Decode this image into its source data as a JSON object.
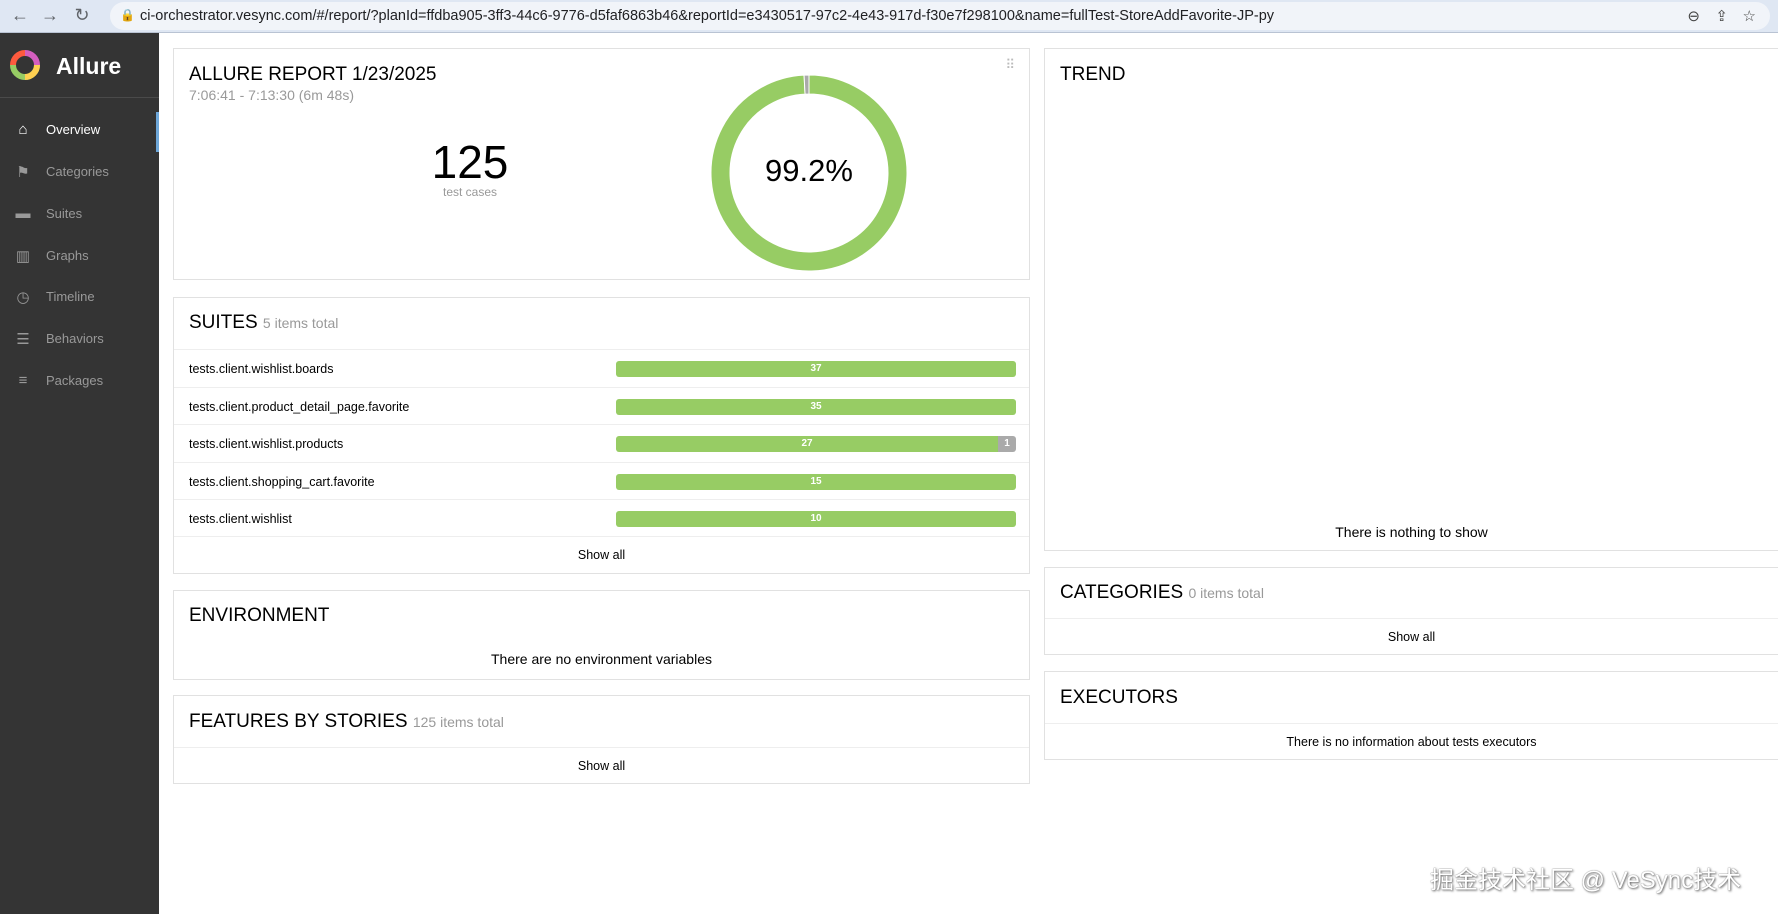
{
  "browser": {
    "url": "ci-orchestrator.vesync.com/#/report/?planId=ffdba905-3ff3-44c6-9776-d5faf6863b46&reportId=e3430517-97c2-4e43-917d-f30e7f298100&name=fullTest-StoreAddFavorite-JP-py"
  },
  "sidebar": {
    "brand": "Allure",
    "items": [
      {
        "label": "Overview",
        "icon": "home-icon"
      },
      {
        "label": "Categories",
        "icon": "flag-icon"
      },
      {
        "label": "Suites",
        "icon": "briefcase-icon"
      },
      {
        "label": "Graphs",
        "icon": "bar-chart-icon"
      },
      {
        "label": "Timeline",
        "icon": "clock-icon"
      },
      {
        "label": "Behaviors",
        "icon": "list-icon"
      },
      {
        "label": "Packages",
        "icon": "align-left-icon"
      }
    ]
  },
  "summary": {
    "title": "ALLURE REPORT 1/23/2025",
    "time": "7:06:41 - 7:13:30 (6m 48s)",
    "count": "125",
    "count_label": "test cases",
    "percent": "99.2%",
    "passed": 124,
    "unknown": 1
  },
  "suites": {
    "title": "SUITES",
    "subtitle": "5 items total",
    "show_all": "Show all",
    "rows": [
      {
        "name": "tests.client.wishlist.boards",
        "passed": 37,
        "unknown": 0
      },
      {
        "name": "tests.client.product_detail_page.favorite",
        "passed": 35,
        "unknown": 0
      },
      {
        "name": "tests.client.wishlist.products",
        "passed": 27,
        "unknown": 1
      },
      {
        "name": "tests.client.shopping_cart.favorite",
        "passed": 15,
        "unknown": 0
      },
      {
        "name": "tests.client.wishlist",
        "passed": 10,
        "unknown": 0
      }
    ]
  },
  "environment": {
    "title": "ENVIRONMENT",
    "empty": "There are no environment variables"
  },
  "features": {
    "title": "FEATURES BY STORIES",
    "subtitle": "125 items total",
    "show_all": "Show all"
  },
  "trend": {
    "title": "TREND",
    "empty": "There is nothing to show"
  },
  "categories": {
    "title": "CATEGORIES",
    "subtitle": "0 items total",
    "show_all": "Show all"
  },
  "executors": {
    "title": "EXECUTORS",
    "empty": "There is no information about tests executors"
  },
  "colors": {
    "passed": "#97cc64",
    "unknown": "#aaaaaa"
  },
  "watermark": "掘金技术社区 @ VeSync技术"
}
